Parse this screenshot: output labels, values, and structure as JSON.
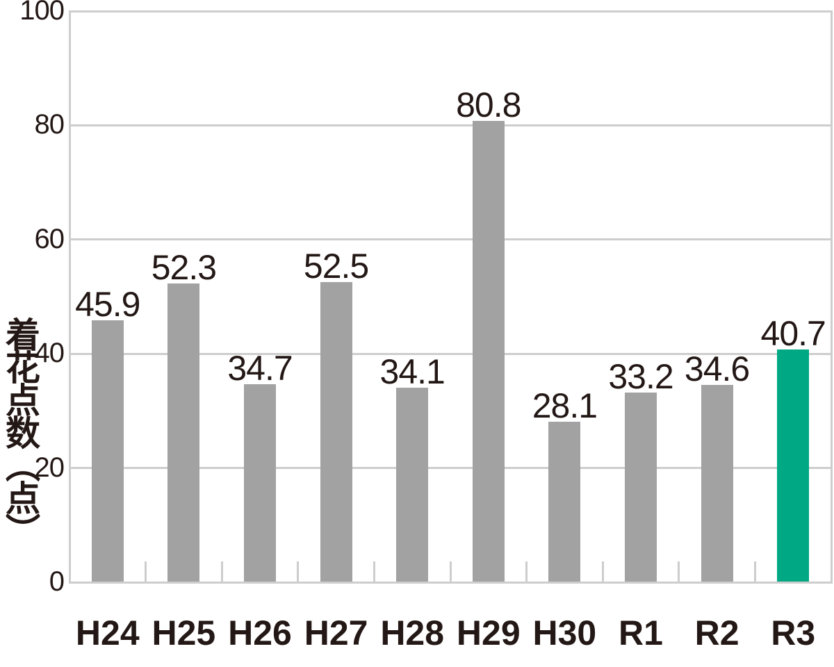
{
  "chart_data": {
    "type": "bar",
    "title": "",
    "xlabel": "",
    "ylabel": "着花点数（点）",
    "categories": [
      "H24",
      "H25",
      "H26",
      "H27",
      "H28",
      "H29",
      "H30",
      "R1",
      "R2",
      "R3"
    ],
    "values": [
      45.9,
      52.3,
      34.7,
      52.5,
      34.1,
      80.8,
      28.1,
      33.2,
      34.6,
      40.7
    ],
    "value_labels": [
      "45.9",
      "52.3",
      "34.7",
      "52.5",
      "34.1",
      "80.8",
      "28.1",
      "33.2",
      "34.6",
      "40.7"
    ],
    "ylim": [
      0,
      100
    ],
    "yticks": [
      0,
      20,
      40,
      60,
      80,
      100
    ],
    "grid": "horizontal gridlines at each y tick, plot box open top handled by 100-gridline, left and right borders shown",
    "legend_position": "none",
    "highlight_index": 9,
    "colors": {
      "bar_default": "#a3a2a2",
      "bar_highlight": "#00a884",
      "grid": "#cdcdcd",
      "text": "#231815",
      "background": "#ffffff"
    }
  }
}
